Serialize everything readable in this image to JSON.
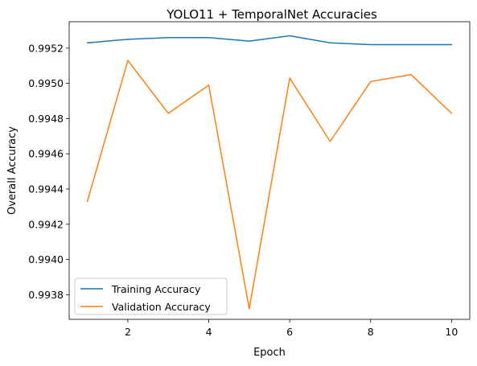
{
  "chart_data": {
    "type": "line",
    "title": "YOLO11 + TemporalNet Accuracies",
    "xlabel": "Epoch",
    "ylabel": "Overall Accuracy",
    "x": [
      1,
      2,
      3,
      4,
      5,
      6,
      7,
      8,
      9,
      10
    ],
    "xticks": [
      2,
      4,
      6,
      8,
      10
    ],
    "xlim": [
      0.55,
      10.45
    ],
    "yticks": [
      0.9938,
      0.994,
      0.9942,
      0.9944,
      0.9946,
      0.9948,
      0.995,
      0.9952
    ],
    "ylim": [
      0.99366,
      0.99535
    ],
    "grid": false,
    "legend_position": "lower-left",
    "series": [
      {
        "name": "Training Accuracy",
        "color": "#1f77b4",
        "values": [
          0.99523,
          0.99525,
          0.99526,
          0.99526,
          0.99524,
          0.99527,
          0.99523,
          0.99522,
          0.99522,
          0.99522
        ]
      },
      {
        "name": "Validation Accuracy",
        "color": "#ff7f0e",
        "values": [
          0.99433,
          0.99513,
          0.99483,
          0.99499,
          0.99372,
          0.99503,
          0.99467,
          0.99501,
          0.99505,
          0.99483
        ]
      }
    ]
  }
}
